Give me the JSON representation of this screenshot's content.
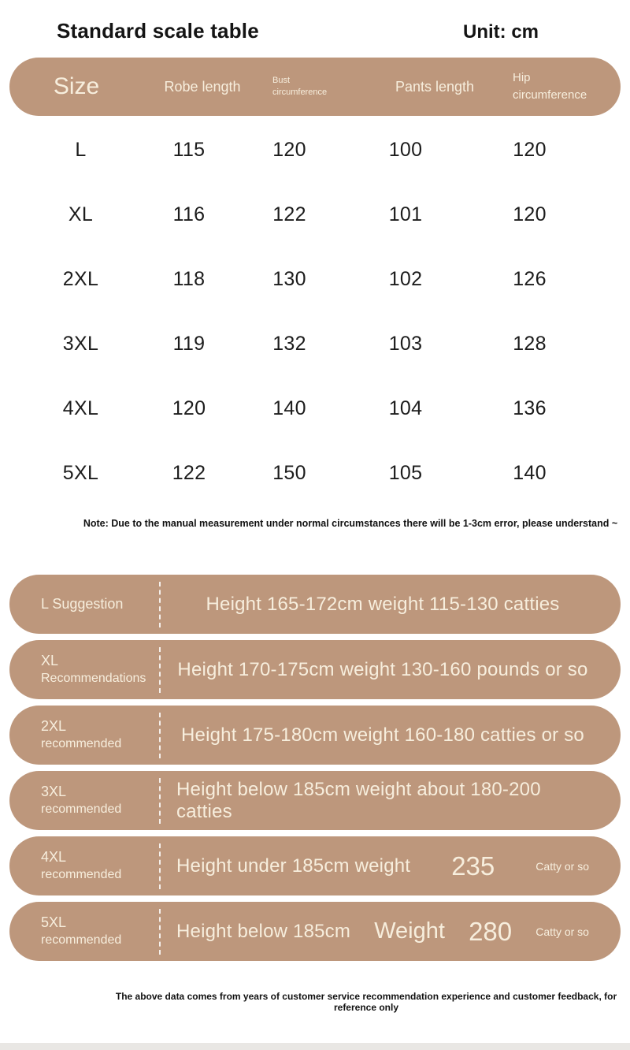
{
  "title": "Standard scale table",
  "unit": "Unit: cm",
  "colors": {
    "pill_background": "#bd977c",
    "pill_text": "#f7eedd",
    "body_text": "#1a1a1a"
  },
  "table": {
    "headers": {
      "size": "Size",
      "robe": "Robe length",
      "bust": "Bust circumference",
      "pants": "Pants length",
      "hip": "Hip circumference"
    },
    "rows": [
      {
        "size": "L",
        "values": [
          "115",
          "120",
          "100",
          "120"
        ]
      },
      {
        "size": "XL",
        "values": [
          "116",
          "122",
          "101",
          "120"
        ]
      },
      {
        "size": "2XL",
        "values": [
          "118",
          "130",
          "102",
          "126"
        ]
      },
      {
        "size": "3XL",
        "values": [
          "119",
          "132",
          "103",
          "128"
        ]
      },
      {
        "size": "4XL",
        "values": [
          "120",
          "140",
          "104",
          "136"
        ]
      },
      {
        "size": "5XL",
        "values": [
          "122",
          "150",
          "105",
          "140"
        ]
      }
    ]
  },
  "note": "Note: Due to the manual measurement under normal circumstances there will be 1-3cm error, please understand ~",
  "suggestions": [
    {
      "label_line1": "L Suggestion",
      "label_line2": "",
      "text": "Height 165-172cm weight 115-130 catties"
    },
    {
      "label_line1": "XL",
      "label_line2": "Recommendations",
      "text": "Height 170-175cm weight 130-160 pounds or so"
    },
    {
      "label_line1": "2XL",
      "label_line2": "recommended",
      "text": "Height 175-180cm weight 160-180 catties or so"
    },
    {
      "label_line1": "3XL",
      "label_line2": "recommended",
      "text": "Height below 185cm weight about 180-200 catties"
    },
    {
      "label_line1": "4XL",
      "label_line2": "recommended",
      "text": "Height under 185cm weight",
      "big_value": "235",
      "small_suffix": "Catty or so"
    },
    {
      "label_line1": "5XL",
      "label_line2": "recommended",
      "text": "Height below 185cm",
      "mid_label": "Weight",
      "big_value": "280",
      "small_suffix": "Catty or so"
    }
  ],
  "footer_note": "The above data comes from years of customer service recommendation experience and customer feedback, for reference only"
}
